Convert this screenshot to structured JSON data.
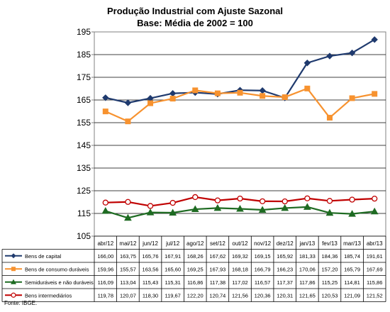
{
  "chart_data": {
    "type": "line",
    "title": "Produção Industrial com Ajuste Sazonal",
    "subtitle": "Base: Média de 2002 = 100",
    "categories": [
      "abr/12",
      "mai/12",
      "jun/12",
      "jul/12",
      "ago/12",
      "set/12",
      "out/12",
      "nov/12",
      "dez/12",
      "jan/13",
      "fev/13",
      "mar/13",
      "abr/13"
    ],
    "ylim": [
      105,
      195
    ],
    "yticks": [
      105,
      115,
      125,
      135,
      145,
      155,
      165,
      175,
      185,
      195
    ],
    "grid": true,
    "legend": "data-table",
    "series": [
      {
        "name": "Bens de capital",
        "color": "#1F3A6E",
        "marker": "diamond",
        "values": [
          166.0,
          163.75,
          165.76,
          167.91,
          168.26,
          167.62,
          169.32,
          169.15,
          165.92,
          181.33,
          184.36,
          185.74,
          191.61
        ],
        "labels": [
          "166,00",
          "163,75",
          "165,76",
          "167,91",
          "168,26",
          "167,62",
          "169,32",
          "169,15",
          "165,92",
          "181,33",
          "184,36",
          "185,74",
          "191,61"
        ]
      },
      {
        "name": "Bens de consumo duráveis",
        "color": "#F7922F",
        "marker": "square",
        "values": [
          159.96,
          155.57,
          163.56,
          165.6,
          169.25,
          167.93,
          168.18,
          166.79,
          166.23,
          170.06,
          157.2,
          165.79,
          167.69
        ],
        "labels": [
          "159,96",
          "155,57",
          "163,56",
          "165,60",
          "169,25",
          "167,93",
          "168,18",
          "166,79",
          "166,23",
          "170,06",
          "157,20",
          "165,79",
          "167,69"
        ]
      },
      {
        "name": "Semiduráveis e não duráveis",
        "color": "#1E6B22",
        "marker": "triangle",
        "values": [
          116.09,
          113.04,
          115.43,
          115.31,
          116.86,
          117.38,
          117.02,
          116.57,
          117.37,
          117.86,
          115.25,
          114.81,
          115.86
        ],
        "labels": [
          "116,09",
          "113,04",
          "115,43",
          "115,31",
          "116,86",
          "117,38",
          "117,02",
          "116,57",
          "117,37",
          "117,86",
          "115,25",
          "114,81",
          "115,86"
        ]
      },
      {
        "name": "Bens intermediários",
        "color": "#C00000",
        "marker": "circle",
        "values": [
          119.78,
          120.07,
          118.3,
          119.67,
          122.2,
          120.74,
          121.56,
          120.36,
          120.31,
          121.65,
          120.53,
          121.09,
          121.52
        ],
        "labels": [
          "119,78",
          "120,07",
          "118,30",
          "119,67",
          "122,20",
          "120,74",
          "121,56",
          "120,36",
          "120,31",
          "121,65",
          "120,53",
          "121,09",
          "121,52"
        ]
      }
    ],
    "source": "Fonte: IBGE."
  }
}
